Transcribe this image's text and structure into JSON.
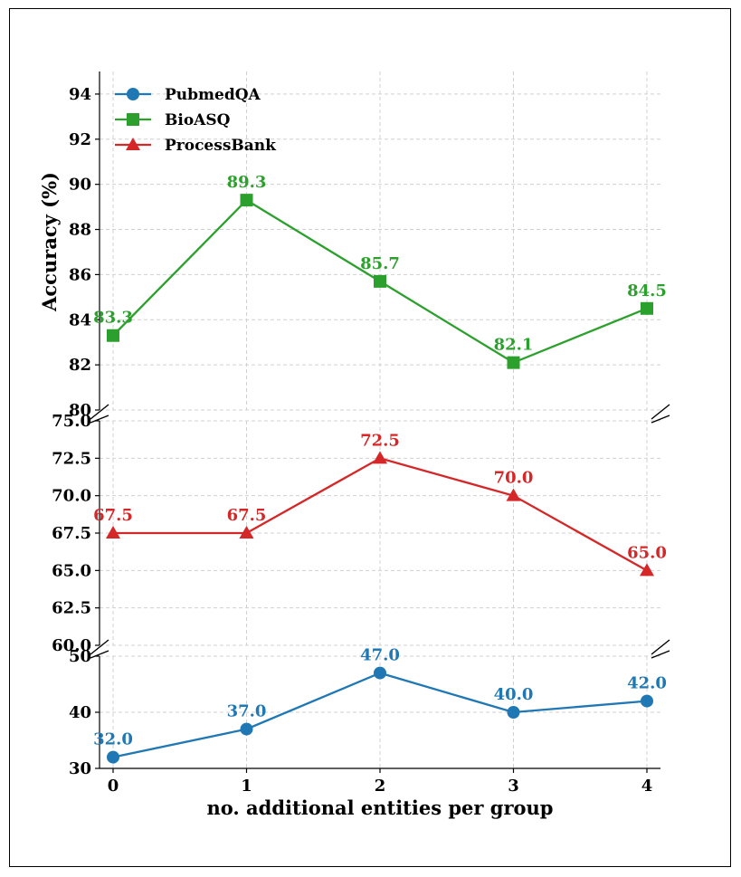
{
  "chart_data": {
    "type": "line",
    "xlabel": "no. additional entities per group",
    "ylabel": "Accuracy (%)",
    "x": [
      0,
      1,
      2,
      3,
      4
    ],
    "series": [
      {
        "name": "PubmedQA",
        "values": [
          32.0,
          37.0,
          47.0,
          40.0,
          42.0
        ],
        "labels": [
          "32.0",
          "37.0",
          "47.0",
          "40.0",
          "42.0"
        ],
        "color": "#1f77b4",
        "marker": "circle"
      },
      {
        "name": "BioASQ",
        "values": [
          83.3,
          89.3,
          85.7,
          82.1,
          84.5
        ],
        "labels": [
          "83.3",
          "89.3",
          "85.7",
          "82.1",
          "84.5"
        ],
        "color": "#2ca02c",
        "marker": "square"
      },
      {
        "name": "ProcessBank",
        "values": [
          67.5,
          67.5,
          72.5,
          70.0,
          65.0
        ],
        "labels": [
          "67.5",
          "67.5",
          "72.5",
          "70.0",
          "65.0"
        ],
        "color": "#d62728",
        "marker": "triangle"
      }
    ],
    "panels": [
      {
        "series": "BioASQ",
        "ylim": [
          80,
          95
        ],
        "ticks": [
          "80",
          "82",
          "84",
          "86",
          "88",
          "90",
          "92",
          "94"
        ]
      },
      {
        "series": "ProcessBank",
        "ylim": [
          60,
          75
        ],
        "ticks": [
          "60.0",
          "62.5",
          "65.0",
          "67.5",
          "70.0",
          "72.5",
          "75.0"
        ]
      },
      {
        "series": "PubmedQA",
        "ylim": [
          30,
          50
        ],
        "ticks": [
          "30",
          "40",
          "50"
        ]
      }
    ],
    "xticks": [
      "0",
      "1",
      "2",
      "3",
      "4"
    ],
    "legend": "top-left",
    "grid": true
  }
}
